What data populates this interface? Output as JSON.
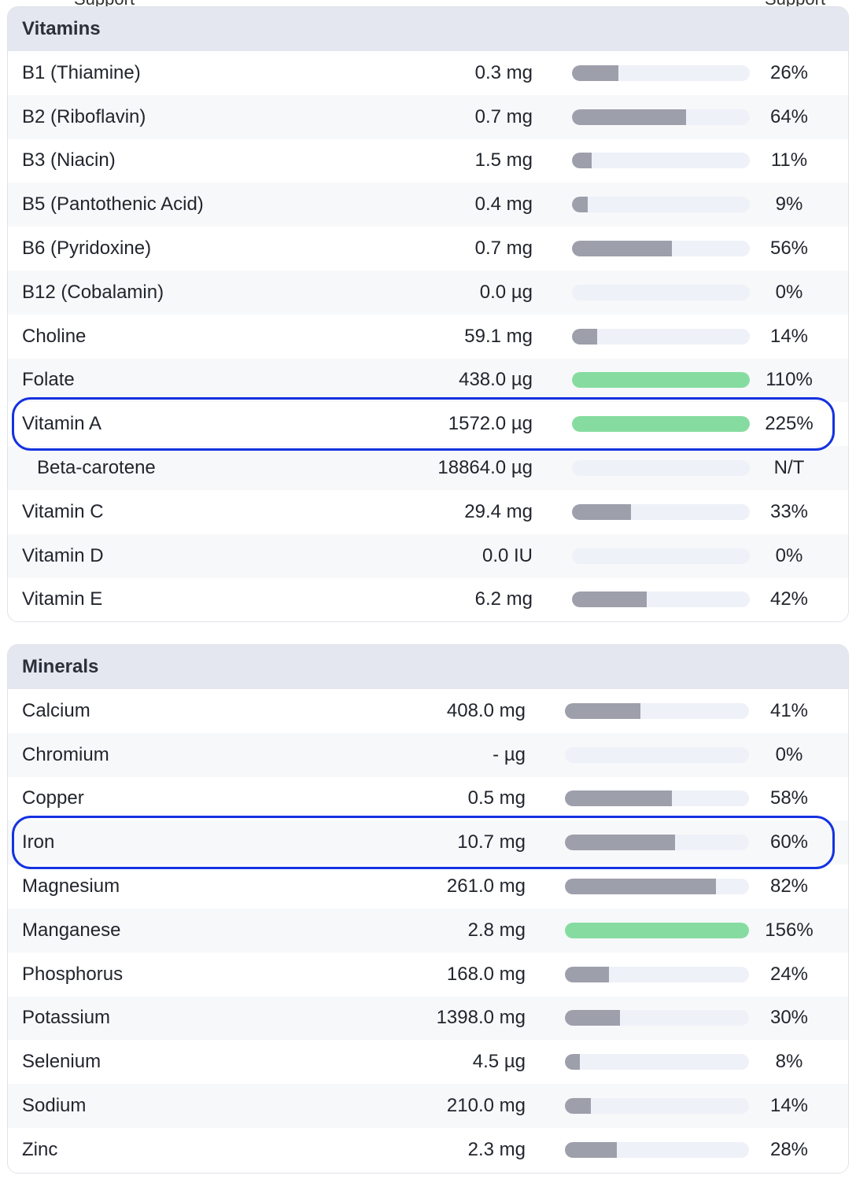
{
  "cutoff_labels": {
    "left": "Support",
    "right": "Support"
  },
  "vitamins": {
    "title": "Vitamins",
    "rows": [
      {
        "name": "B1 (Thiamine)",
        "amount": "0.3 mg",
        "pct": "26%",
        "fill": 0.26
      },
      {
        "name": "B2 (Riboflavin)",
        "amount": "0.7 mg",
        "pct": "64%",
        "fill": 0.64
      },
      {
        "name": "B3 (Niacin)",
        "amount": "1.5 mg",
        "pct": "11%",
        "fill": 0.11
      },
      {
        "name": "B5 (Pantothenic Acid)",
        "amount": "0.4 mg",
        "pct": "9%",
        "fill": 0.09
      },
      {
        "name": "B6 (Pyridoxine)",
        "amount": "0.7 mg",
        "pct": "56%",
        "fill": 0.56
      },
      {
        "name": "B12 (Cobalamin)",
        "amount": "0.0 µg",
        "pct": "0%",
        "fill": 0
      },
      {
        "name": "Choline",
        "amount": "59.1 mg",
        "pct": "14%",
        "fill": 0.14
      },
      {
        "name": "Folate",
        "amount": "438.0 µg",
        "pct": "110%",
        "fill": 1.1
      },
      {
        "name": "Vitamin A",
        "amount": "1572.0 µg",
        "pct": "225%",
        "fill": 2.25,
        "highlighted": true
      },
      {
        "name": "Beta-carotene",
        "amount": "18864.0 µg",
        "pct": "N/T",
        "fill": 0,
        "sub": true
      },
      {
        "name": "Vitamin C",
        "amount": "29.4 mg",
        "pct": "33%",
        "fill": 0.33
      },
      {
        "name": "Vitamin D",
        "amount": "0.0 IU",
        "pct": "0%",
        "fill": 0
      },
      {
        "name": "Vitamin E",
        "amount": "6.2 mg",
        "pct": "42%",
        "fill": 0.42
      }
    ]
  },
  "minerals": {
    "title": "Minerals",
    "rows": [
      {
        "name": "Calcium",
        "amount": "408.0 mg",
        "pct": "41%",
        "fill": 0.41
      },
      {
        "name": "Chromium",
        "amount": "- µg",
        "pct": "0%",
        "fill": 0
      },
      {
        "name": "Copper",
        "amount": "0.5 mg",
        "pct": "58%",
        "fill": 0.58
      },
      {
        "name": "Iron",
        "amount": "10.7 mg",
        "pct": "60%",
        "fill": 0.6,
        "highlighted": true
      },
      {
        "name": "Magnesium",
        "amount": "261.0 mg",
        "pct": "82%",
        "fill": 0.82
      },
      {
        "name": "Manganese",
        "amount": "2.8 mg",
        "pct": "156%",
        "fill": 1.56
      },
      {
        "name": "Phosphorus",
        "amount": "168.0 mg",
        "pct": "24%",
        "fill": 0.24
      },
      {
        "name": "Potassium",
        "amount": "1398.0 mg",
        "pct": "30%",
        "fill": 0.3
      },
      {
        "name": "Selenium",
        "amount": "4.5 µg",
        "pct": "8%",
        "fill": 0.08
      },
      {
        "name": "Sodium",
        "amount": "210.0 mg",
        "pct": "14%",
        "fill": 0.14
      },
      {
        "name": "Zinc",
        "amount": "2.3 mg",
        "pct": "28%",
        "fill": 0.28
      }
    ]
  },
  "colors": {
    "bar_track": "#eef1f7",
    "bar_fill": "#9d9fab",
    "bar_fill_over_100": "#86dca0",
    "highlight_border": "#1532e0",
    "header_bg": "#e4e7ef"
  }
}
